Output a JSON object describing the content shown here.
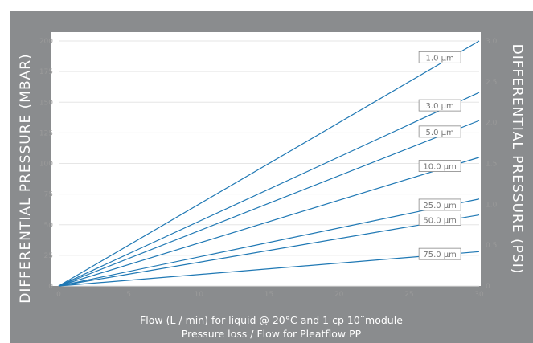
{
  "chart_data": {
    "type": "line",
    "title": "",
    "xlabel": "Flow (L / min) for liquid @ 20°C and 1 cp 10¨module",
    "subtitle": "Pressure loss / Flow for Pleatflow PP",
    "ylabel_left": "DIFFERENTIAL PRESSURE  (MBAR)",
    "ylabel_right": "DIFFERENTIAL PRESSURE  (PSI)",
    "xlim": [
      0,
      30
    ],
    "ylim_left": [
      0,
      200
    ],
    "ylim_right": [
      0,
      3.0
    ],
    "x_ticks": [
      "0",
      "5",
      "10",
      "15",
      "20",
      "25",
      "30"
    ],
    "y_left_ticks": [
      "0",
      "25",
      "50",
      "75",
      "100",
      "125",
      "150",
      "175",
      "200"
    ],
    "y_right_ticks": [
      "0",
      "0.5",
      "1.0",
      "1.5",
      "2.0",
      "2.5",
      "3.0"
    ],
    "grid": true,
    "colors": {
      "line": "#1f78b4",
      "panel": "#8a8c8e",
      "grid": "#e6e6e6",
      "tick": "#9a9a9a",
      "label_border": "#888888",
      "label_text": "#777777"
    },
    "series": [
      {
        "name": "1.0 µm",
        "x": [
          0,
          30
        ],
        "y": [
          0,
          200
        ]
      },
      {
        "name": "3.0 µm",
        "x": [
          0,
          30
        ],
        "y": [
          0,
          158
        ]
      },
      {
        "name": "5.0 µm",
        "x": [
          0,
          30
        ],
        "y": [
          0,
          135
        ]
      },
      {
        "name": "10.0 µm",
        "x": [
          0,
          30
        ],
        "y": [
          0,
          105
        ]
      },
      {
        "name": "25.0 µm",
        "x": [
          0,
          30
        ],
        "y": [
          0,
          71
        ]
      },
      {
        "name": "50.0 µm",
        "x": [
          0,
          30
        ],
        "y": [
          0,
          58
        ]
      },
      {
        "name": "75.0 µm",
        "x": [
          0,
          30
        ],
        "y": [
          0,
          28
        ]
      }
    ]
  }
}
